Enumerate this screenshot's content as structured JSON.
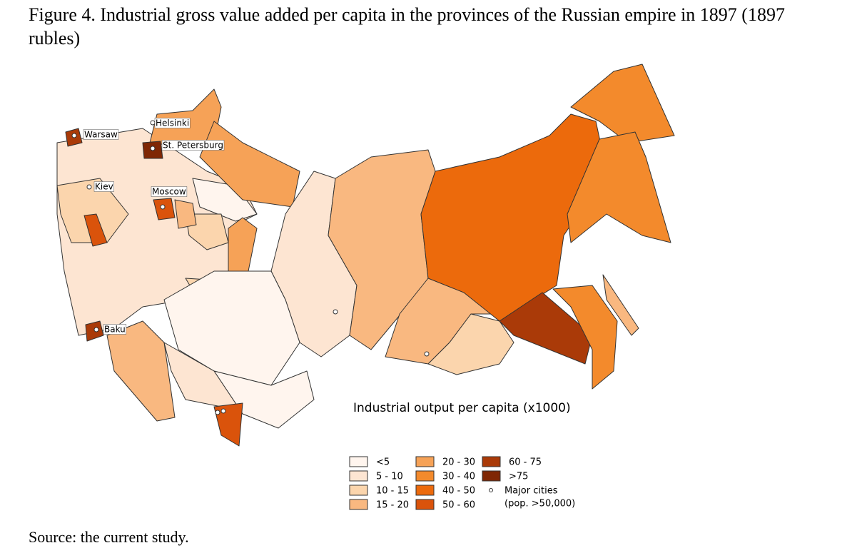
{
  "figure": {
    "title": "Figure 4. Industrial gross value added per capita in the provinces of the Russian empire in 1897 (1897 rubles)",
    "source": "Source: the current study.",
    "map": {
      "cities": [
        "Warsaw",
        "Helsinki",
        "St. Petersburg",
        "Kiev",
        "Moscow",
        "Baku"
      ],
      "legend": {
        "title": "Industrial output per capita (x1000)",
        "items": [
          {
            "label": "<5",
            "color": "#fff5ee"
          },
          {
            "label": "5 - 10",
            "color": "#fde5d2"
          },
          {
            "label": "10 - 15",
            "color": "#fbd5ad"
          },
          {
            "label": "15 - 20",
            "color": "#f9b880"
          },
          {
            "label": "20 - 30",
            "color": "#f6a257"
          },
          {
            "label": "30 - 40",
            "color": "#f38a2c"
          },
          {
            "label": "40 - 50",
            "color": "#ec6a0c"
          },
          {
            "label": "50 - 60",
            "color": "#da530b"
          },
          {
            "label": "60 - 75",
            "color": "#aa3a08"
          },
          {
            "label": ">75",
            "color": "#7f2704"
          }
        ],
        "cities_label": [
          "Major cities",
          "(pop. >50,000)"
        ]
      }
    }
  }
}
